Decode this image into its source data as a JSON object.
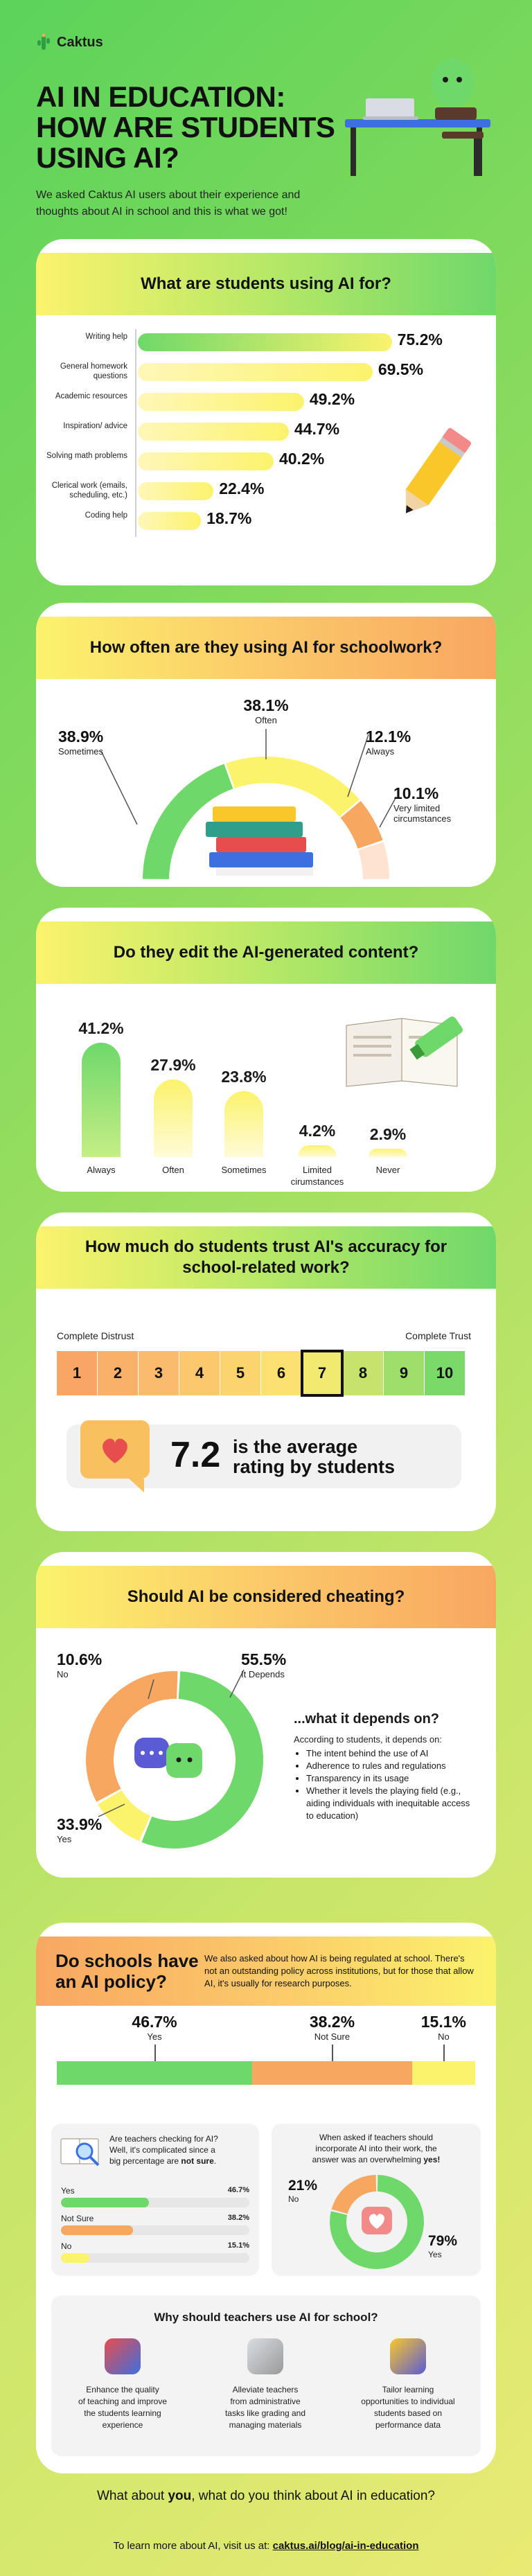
{
  "brand": "Caktus",
  "title_line1": "AI IN EDUCATION:",
  "title_line2": "HOW ARE STUDENTS",
  "title_line3": "USING AI?",
  "intro": "We asked Caktus AI users about their experience and thoughts about AI in school and this is what we got!",
  "colors": {
    "green": "#6fd86a",
    "yellow": "#fbf36c",
    "orange": "#f8a761",
    "highlight": "#111111"
  },
  "chart_data": [
    {
      "type": "bar",
      "title": "What are students using AI for?",
      "categories": [
        "Writing help",
        "General homework questions",
        "Academic resources",
        "Inspiration/ advice",
        "Solving math problems",
        "Clerical work (emails, scheduling, etc.)",
        "Coding help"
      ],
      "values": [
        75.2,
        69.5,
        49.2,
        44.7,
        40.2,
        22.4,
        18.7
      ],
      "value_labels": [
        "75.2%",
        "69.5%",
        "49.2%",
        "44.7%",
        "40.2%",
        "22.4%",
        "18.7%"
      ]
    },
    {
      "type": "pie",
      "title": "How often are they using AI for schoolwork?",
      "categories": [
        "Sometimes",
        "Often",
        "Always",
        "Very limited circumstances"
      ],
      "values": [
        38.9,
        38.1,
        12.1,
        10.1
      ],
      "value_labels": [
        "38.9%",
        "38.1%",
        "12.1%",
        "10.1%"
      ]
    },
    {
      "type": "bar",
      "title": "Do they edit the AI-generated content?",
      "categories": [
        "Always",
        "Often",
        "Sometimes",
        "Limited cirumstances",
        "Never"
      ],
      "values": [
        41.2,
        27.9,
        23.8,
        4.2,
        2.9
      ],
      "value_labels": [
        "41.2%",
        "27.9%",
        "23.8%",
        "4.2%",
        "2.9%"
      ]
    },
    {
      "type": "bar",
      "title": "How much do students trust AI's accuracy for school-related work?",
      "scale": [
        "1",
        "2",
        "3",
        "4",
        "5",
        "6",
        "7",
        "8",
        "9",
        "10"
      ],
      "scale_min_label": "Complete Distrust",
      "scale_max_label": "Complete Trust",
      "highlight": 7,
      "average": "7.2",
      "average_text_1": "is the average",
      "average_text_2": "rating by students"
    },
    {
      "type": "pie",
      "title": "Should AI be considered cheating?",
      "categories": [
        "It Depends",
        "No",
        "Yes"
      ],
      "values": [
        55.5,
        10.6,
        33.9
      ],
      "value_labels": [
        "55.5%",
        "10.6%",
        "33.9%"
      ]
    },
    {
      "type": "bar",
      "title": "Do schools have an AI policy?",
      "categories": [
        "Yes",
        "Not Sure",
        "No"
      ],
      "values": [
        46.7,
        38.2,
        15.1
      ],
      "value_labels": [
        "46.7%",
        "38.2%",
        "15.1%"
      ]
    },
    {
      "type": "bar",
      "title": "Are teachers checking for AI?",
      "categories": [
        "Yes",
        "Not Sure",
        "No"
      ],
      "values": [
        46.7,
        38.2,
        15.1
      ],
      "value_labels": [
        "46.7%",
        "38.2%",
        "15.1%"
      ]
    },
    {
      "type": "pie",
      "title": "When asked if teachers should incorporate AI into their work",
      "categories": [
        "No",
        "Yes"
      ],
      "values": [
        21,
        79
      ],
      "value_labels": [
        "21%",
        "79%"
      ]
    }
  ],
  "s2": {
    "often_label": "Often",
    "sometimes_label": "Sometimes",
    "always_label": "Always",
    "limited_label_1": "Very limited",
    "limited_label_2": "circumstances"
  },
  "s5": {
    "depends_title": "...what it depends on?",
    "depends_intro": "According to students, it depends on:",
    "bullets": [
      "The intent behind the use of AI",
      "Adherence to rules and regulations",
      "Transparency in its usage",
      "Whether it levels the playing field (e.g., aiding individuals with inequitable access to education)"
    ]
  },
  "s6": {
    "title_1": "Do schools have",
    "title_2": "an AI policy?",
    "desc": "We also asked about how AI is being regulated at school. There's not an outstanding policy across institutions, but for those that allow AI, it's usually for research purposes.",
    "checking_1": "Are teachers checking for AI?",
    "checking_2": "Well, it's complicated since a",
    "checking_3": "big percentage are",
    "checking_bold": "not sure",
    "incorporate_1": "When asked if teachers should",
    "incorporate_2": "incorporate AI into their work, the",
    "incorporate_3": "answer was an overwhelming",
    "incorporate_bold": "yes!",
    "why_title": "Why should teachers use AI for school?",
    "reasons": [
      [
        "Enhance the quality",
        "of teaching and improve",
        "the students learning",
        "experience"
      ],
      [
        "Alleviate teachers",
        "from administrative",
        "tasks like grading and",
        "managing materials"
      ],
      [
        "Tailor learning",
        "opportunities to individual",
        "students based on",
        "performance data"
      ]
    ]
  },
  "footer": {
    "question_pre": "What about ",
    "question_bold": "you",
    "question_post": ", what do you think about AI in education?",
    "link_pre": "To learn more about AI, visit us at: ",
    "link": "caktus.ai/blog/ai-in-education"
  }
}
